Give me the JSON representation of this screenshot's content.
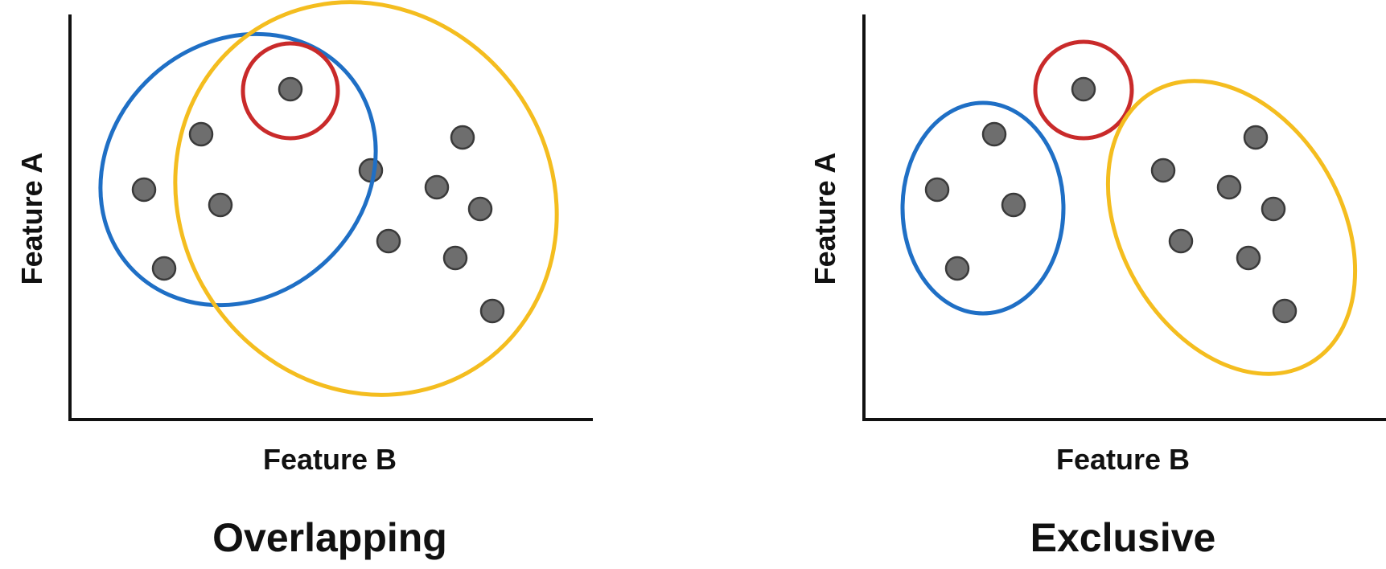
{
  "panels": [
    {
      "id": "overlapping",
      "title": "Overlapping",
      "x_label": "Feature B",
      "y_label": "Feature A"
    },
    {
      "id": "exclusive",
      "title": "Exclusive",
      "x_label": "Feature B",
      "y_label": "Feature A"
    }
  ],
  "colors": {
    "cluster_blue": "#1f6fc5",
    "cluster_yellow": "#f4bd1f",
    "cluster_red": "#c92a2a",
    "point_fill": "#6e6e6e",
    "axis": "#111111"
  }
}
